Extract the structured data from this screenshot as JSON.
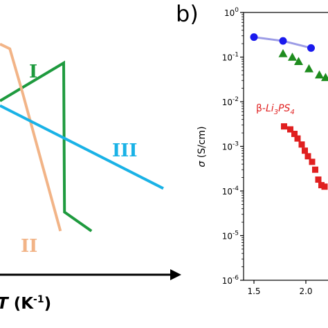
{
  "panel_b_label": "b)",
  "chart_data": [
    {
      "type": "line",
      "panel": "a",
      "xlabel_parts": {
        "prefix": "",
        "T": "T",
        "mid": " (K",
        "exp": "-1",
        "suffix": ")"
      },
      "series": [
        {
          "name": "I",
          "color": "#1e9a3e",
          "points": [
            [
              0.0,
              0.72
            ],
            [
              0.39,
              0.88
            ],
            [
              0.395,
              0.25
            ],
            [
              0.56,
              0.17
            ]
          ]
        },
        {
          "name": "II",
          "color": "#f2b487",
          "points": [
            [
              0.0,
              0.96
            ],
            [
              0.06,
              0.94
            ],
            [
              0.14,
              0.75
            ],
            [
              0.37,
              0.17
            ]
          ]
        },
        {
          "name": "III",
          "color": "#1ab2e6",
          "points": [
            [
              0.0,
              0.7
            ],
            [
              1.0,
              0.35
            ]
          ]
        }
      ],
      "labels": [
        {
          "text": "I",
          "color": "#1e9a3e"
        },
        {
          "text": "II",
          "color": "#f2b487"
        },
        {
          "text": "III",
          "color": "#1ab2e6"
        }
      ]
    },
    {
      "type": "scatter",
      "panel": "b",
      "ylabel": "σ (S/cm)",
      "yscale": "log",
      "xlim": [
        1.4,
        2.2
      ],
      "ylim_exp": [
        -6,
        0
      ],
      "xticks": [
        "1.5",
        "2.0"
      ],
      "yticks": [
        {
          "base": "10",
          "exp": "0"
        },
        {
          "base": "10",
          "exp": "-1"
        },
        {
          "base": "10",
          "exp": "-2"
        },
        {
          "base": "10",
          "exp": "-3"
        },
        {
          "base": "10",
          "exp": "-4"
        },
        {
          "base": "10",
          "exp": "-5"
        },
        {
          "base": "10",
          "exp": "-6"
        }
      ],
      "annotation": {
        "prefix": "β-",
        "main": "Li",
        "sub1": "3",
        "mid": "PS",
        "sub2": "4",
        "color": "#e02020"
      },
      "series": [
        {
          "marker": "circle",
          "color": "#1a1aee",
          "line_color": "#9c9ce6",
          "points": [
            [
              1.5,
              0.28
            ],
            [
              1.78,
              0.23
            ],
            [
              2.05,
              0.16
            ]
          ]
        },
        {
          "marker": "triangle",
          "color": "#1e8c1e",
          "points": [
            [
              1.78,
              0.12
            ],
            [
              1.87,
              0.1
            ],
            [
              1.93,
              0.08
            ],
            [
              2.03,
              0.055
            ],
            [
              2.13,
              0.04
            ],
            [
              2.19,
              0.035
            ]
          ]
        },
        {
          "marker": "square",
          "color": "#e02020",
          "points": [
            [
              1.79,
              0.0028
            ],
            [
              1.85,
              0.0024
            ],
            [
              1.89,
              0.0019
            ],
            [
              1.92,
              0.0015
            ],
            [
              1.96,
              0.0011
            ],
            [
              1.99,
              0.0008
            ],
            [
              2.02,
              0.0006
            ],
            [
              2.06,
              0.00045
            ],
            [
              2.09,
              0.0003
            ],
            [
              2.12,
              0.00018
            ],
            [
              2.15,
              0.000135
            ],
            [
              2.18,
              0.000125
            ]
          ]
        }
      ]
    }
  ]
}
